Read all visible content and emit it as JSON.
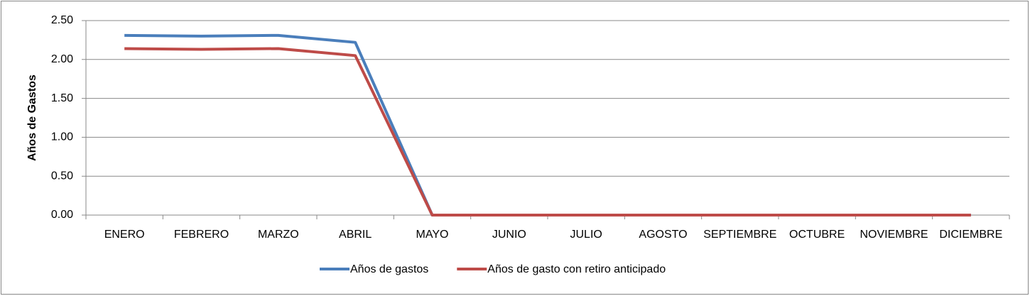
{
  "chart_data": {
    "type": "line",
    "y_label": "Años de Gastos",
    "categories": [
      "ENERO",
      "FEBRERO",
      "MARZO",
      "ABRIL",
      "MAYO",
      "JUNIO",
      "JULIO",
      "AGOSTO",
      "SEPTIEMBRE",
      "OCTUBRE",
      "NOVIEMBRE",
      "DICIEMBRE"
    ],
    "series": [
      {
        "name": "Años de gastos",
        "color": "#4a7ebb",
        "values": [
          2.31,
          2.3,
          2.31,
          2.22,
          0,
          0,
          0,
          0,
          0,
          0,
          0,
          0
        ]
      },
      {
        "name": "Años de gasto con retiro anticipado",
        "color": "#be4b48",
        "values": [
          2.14,
          2.13,
          2.14,
          2.05,
          0,
          0,
          0,
          0,
          0,
          0,
          0,
          0
        ]
      }
    ],
    "ylim": [
      0,
      2.5
    ],
    "yticks": [
      {
        "value": 0,
        "label": "0.00"
      },
      {
        "value": 0.5,
        "label": "0.50"
      },
      {
        "value": 1,
        "label": "1.00"
      },
      {
        "value": 1.5,
        "label": "1.50"
      },
      {
        "value": 2,
        "label": "2.00"
      },
      {
        "value": 2.5,
        "label": "2.50"
      }
    ],
    "grid": true,
    "legend": "bottom"
  }
}
